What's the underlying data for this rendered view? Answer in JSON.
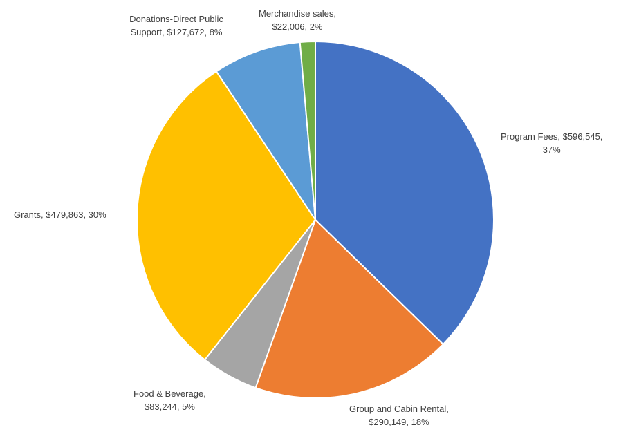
{
  "chart_data": {
    "type": "pie",
    "title": "",
    "slices": [
      {
        "name": "Program Fees",
        "value": 596545,
        "percent": 37,
        "color": "#4472C4",
        "label_lines": [
          "Program Fees, $596,545,",
          "37%"
        ]
      },
      {
        "name": "Group and Cabin Rental",
        "value": 290149,
        "percent": 18,
        "color": "#ED7D31",
        "label_lines": [
          "Group and Cabin Rental,",
          "$290,149, 18%"
        ]
      },
      {
        "name": "Food & Beverage",
        "value": 83244,
        "percent": 5,
        "color": "#A5A5A5",
        "label_lines": [
          "Food & Beverage,",
          "$83,244, 5%"
        ]
      },
      {
        "name": "Grants",
        "value": 479863,
        "percent": 30,
        "color": "#FFC000",
        "label_lines": [
          "Grants, $479,863, 30%"
        ]
      },
      {
        "name": "Donations-Direct Public Support",
        "value": 127672,
        "percent": 8,
        "color": "#5B9BD5",
        "label_lines": [
          "Donations-Direct Public",
          "Support, $127,672, 8%"
        ]
      },
      {
        "name": "Merchandise sales",
        "value": 22006,
        "percent": 2,
        "color": "#70AD47",
        "label_lines": [
          "Merchandise sales,",
          "$22,006, 2%"
        ]
      }
    ]
  }
}
